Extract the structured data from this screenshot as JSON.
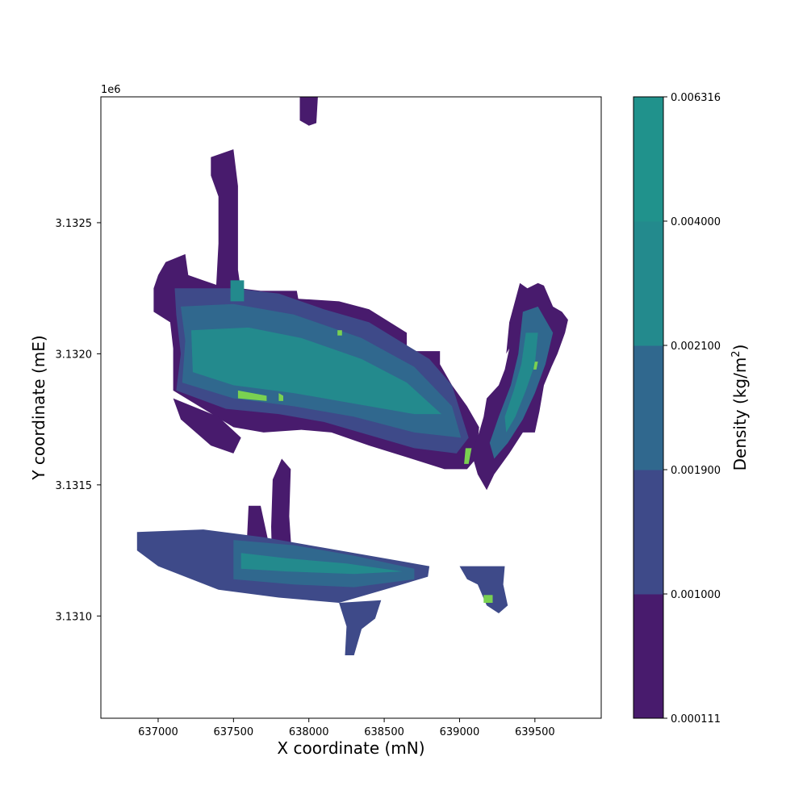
{
  "chart_data": {
    "type": "heatmap",
    "subtype": "filled-contour",
    "title": "",
    "xlabel": "X coordinate (mN)",
    "ylabel": "Y coordinate (mE)",
    "x_ticks": [
      637000,
      637500,
      638000,
      638500,
      639000,
      639500
    ],
    "x_tick_labels": [
      "637000",
      "637500",
      "638000",
      "638500",
      "639000",
      "639500"
    ],
    "y_ticks": [
      3131000,
      3131500,
      3132000,
      3132500
    ],
    "y_tick_labels": [
      "3.1310",
      "3.1315",
      "3.1320",
      "3.1325"
    ],
    "y_offset_label": "1e6",
    "xlim": [
      636620,
      639940
    ],
    "ylim": [
      3130610,
      3132980
    ],
    "grid": false,
    "colorbar": {
      "label_text": "Density (kg/m",
      "label_sup": "2",
      "label_close": ")",
      "levels": [
        0.000111,
        0.001,
        0.0019,
        0.0021,
        0.004,
        0.006316
      ],
      "level_labels": [
        "0.000111",
        "0.001000",
        "0.001900",
        "0.002100",
        "0.004000",
        "0.006316"
      ],
      "colors": [
        "#481b6d",
        "#3e4a89",
        "#30688e",
        "#238a8d",
        "#20928c",
        "#7ad151"
      ]
    },
    "regions": [
      {
        "name": "north-spur",
        "level": 0,
        "poly": [
          [
            637940,
            3132980
          ],
          [
            638060,
            3132980
          ],
          [
            638050,
            3132880
          ],
          [
            638000,
            3132870
          ],
          [
            637940,
            3132890
          ]
        ]
      },
      {
        "name": "curved-band",
        "level": 0,
        "poly": [
          [
            637350,
            3132750
          ],
          [
            637500,
            3132780
          ],
          [
            637530,
            3132640
          ],
          [
            637530,
            3132320
          ],
          [
            637560,
            3132200
          ],
          [
            637380,
            3132200
          ],
          [
            637400,
            3132420
          ],
          [
            637400,
            3132600
          ],
          [
            637350,
            3132680
          ]
        ]
      },
      {
        "name": "main-block-envelope",
        "level": 0,
        "poly": [
          [
            637050,
            3132350
          ],
          [
            637180,
            3132380
          ],
          [
            637200,
            3132300
          ],
          [
            637400,
            3132260
          ],
          [
            637680,
            3132240
          ],
          [
            637920,
            3132240
          ],
          [
            637930,
            3132210
          ],
          [
            638200,
            3132200
          ],
          [
            638400,
            3132170
          ],
          [
            638650,
            3132080
          ],
          [
            638650,
            3132010
          ],
          [
            638870,
            3132010
          ],
          [
            638870,
            3131960
          ],
          [
            638950,
            3131880
          ],
          [
            639050,
            3131800
          ],
          [
            639130,
            3131720
          ],
          [
            639110,
            3131600
          ],
          [
            639050,
            3131560
          ],
          [
            638900,
            3131560
          ],
          [
            638680,
            3131600
          ],
          [
            638400,
            3131650
          ],
          [
            638150,
            3131700
          ],
          [
            637950,
            3131710
          ],
          [
            637700,
            3131700
          ],
          [
            637500,
            3131720
          ],
          [
            637300,
            3131790
          ],
          [
            637100,
            3131860
          ],
          [
            637100,
            3132020
          ],
          [
            637080,
            3132120
          ],
          [
            636970,
            3132160
          ],
          [
            636970,
            3132250
          ],
          [
            637000,
            3132300
          ]
        ]
      },
      {
        "name": "lower-tail",
        "level": 0,
        "poly": [
          [
            637100,
            3131830
          ],
          [
            637400,
            3131760
          ],
          [
            637550,
            3131680
          ],
          [
            637500,
            3131620
          ],
          [
            637350,
            3131650
          ],
          [
            637150,
            3131750
          ]
        ]
      },
      {
        "name": "middle-fin",
        "level": 0,
        "poly": [
          [
            637820,
            3131600
          ],
          [
            637880,
            3131560
          ],
          [
            637870,
            3131380
          ],
          [
            637900,
            3131120
          ],
          [
            637760,
            3131120
          ],
          [
            637750,
            3131340
          ],
          [
            637760,
            3131520
          ]
        ]
      },
      {
        "name": "lower-wedge",
        "level": 0,
        "poly": [
          [
            637600,
            3131420
          ],
          [
            637680,
            3131420
          ],
          [
            637740,
            3131260
          ],
          [
            637780,
            3131180
          ],
          [
            637580,
            3131180
          ]
        ]
      },
      {
        "name": "east-belt-envelope",
        "level": 0,
        "poly": [
          [
            639400,
            3132270
          ],
          [
            639450,
            3132250
          ],
          [
            639520,
            3132270
          ],
          [
            639560,
            3132260
          ],
          [
            639620,
            3132180
          ],
          [
            639680,
            3132160
          ],
          [
            639720,
            3132130
          ],
          [
            639700,
            3132080
          ],
          [
            639650,
            3132000
          ],
          [
            639610,
            3131950
          ],
          [
            639560,
            3131880
          ],
          [
            639530,
            3131780
          ],
          [
            639500,
            3131700
          ],
          [
            639420,
            3131700
          ],
          [
            639330,
            3131620
          ],
          [
            639230,
            3131540
          ],
          [
            639180,
            3131480
          ],
          [
            639120,
            3131540
          ],
          [
            639080,
            3131620
          ],
          [
            639130,
            3131700
          ],
          [
            639160,
            3131760
          ],
          [
            639180,
            3131830
          ],
          [
            639260,
            3131880
          ],
          [
            639300,
            3131940
          ],
          [
            639330,
            3132020
          ],
          [
            639310,
            3132000
          ],
          [
            639330,
            3132120
          ]
        ]
      },
      {
        "name": "main-block-mid",
        "level": 1,
        "poly": [
          [
            637110,
            3132250
          ],
          [
            637500,
            3132250
          ],
          [
            637800,
            3132230
          ],
          [
            638100,
            3132170
          ],
          [
            638400,
            3132120
          ],
          [
            638600,
            3132050
          ],
          [
            638800,
            3131980
          ],
          [
            638950,
            3131880
          ],
          [
            639060,
            3131680
          ],
          [
            638980,
            3131620
          ],
          [
            638700,
            3131640
          ],
          [
            638400,
            3131690
          ],
          [
            638100,
            3131740
          ],
          [
            637800,
            3131770
          ],
          [
            637450,
            3131790
          ],
          [
            637120,
            3131860
          ],
          [
            637150,
            3132000
          ],
          [
            637120,
            3132150
          ]
        ]
      },
      {
        "name": "main-block-upper",
        "level": 2,
        "poly": [
          [
            637150,
            3132180
          ],
          [
            637500,
            3132190
          ],
          [
            637900,
            3132150
          ],
          [
            638350,
            3132060
          ],
          [
            638700,
            3131950
          ],
          [
            638950,
            3131800
          ],
          [
            639010,
            3131680
          ],
          [
            638700,
            3131700
          ],
          [
            638300,
            3131760
          ],
          [
            637900,
            3131800
          ],
          [
            637500,
            3131830
          ],
          [
            637160,
            3131890
          ],
          [
            637180,
            3132050
          ]
        ]
      },
      {
        "name": "main-block-core",
        "level": 3,
        "poly": [
          [
            637220,
            3132090
          ],
          [
            637600,
            3132100
          ],
          [
            637950,
            3132060
          ],
          [
            638350,
            3131980
          ],
          [
            638650,
            3131890
          ],
          [
            638880,
            3131770
          ],
          [
            638700,
            3131770
          ],
          [
            638300,
            3131810
          ],
          [
            637900,
            3131850
          ],
          [
            637500,
            3131880
          ],
          [
            637230,
            3131930
          ]
        ]
      },
      {
        "name": "main-north-tab",
        "level": 3,
        "poly": [
          [
            637480,
            3132280
          ],
          [
            637570,
            3132280
          ],
          [
            637570,
            3132200
          ],
          [
            637480,
            3132200
          ]
        ]
      },
      {
        "name": "south-belt-low",
        "level": 1,
        "poly": [
          [
            636860,
            3131320
          ],
          [
            637300,
            3131330
          ],
          [
            637700,
            3131300
          ],
          [
            638100,
            3131260
          ],
          [
            638500,
            3131220
          ],
          [
            638800,
            3131190
          ],
          [
            638790,
            3131150
          ],
          [
            638500,
            3131100
          ],
          [
            638200,
            3131050
          ],
          [
            637800,
            3131070
          ],
          [
            637400,
            3131100
          ],
          [
            637000,
            3131190
          ],
          [
            636860,
            3131250
          ]
        ]
      },
      {
        "name": "south-belt-mid",
        "level": 2,
        "poly": [
          [
            637500,
            3131290
          ],
          [
            637900,
            3131270
          ],
          [
            638300,
            3131230
          ],
          [
            638700,
            3131180
          ],
          [
            638700,
            3131140
          ],
          [
            638300,
            3131110
          ],
          [
            637900,
            3131120
          ],
          [
            637500,
            3131140
          ]
        ]
      },
      {
        "name": "south-belt-core",
        "level": 3,
        "poly": [
          [
            637550,
            3131240
          ],
          [
            637850,
            3131220
          ],
          [
            638250,
            3131200
          ],
          [
            638620,
            3131170
          ],
          [
            638300,
            3131160
          ],
          [
            637850,
            3131170
          ],
          [
            637550,
            3131180
          ]
        ]
      },
      {
        "name": "south-drips",
        "level": 1,
        "poly": [
          [
            638200,
            3131050
          ],
          [
            638480,
            3131060
          ],
          [
            638440,
            3130990
          ],
          [
            638350,
            3130950
          ],
          [
            638300,
            3130850
          ],
          [
            638240,
            3130850
          ],
          [
            638250,
            3130960
          ]
        ]
      },
      {
        "name": "southeast-cluster",
        "level": 1,
        "poly": [
          [
            639000,
            3131190
          ],
          [
            639300,
            3131190
          ],
          [
            639290,
            3131120
          ],
          [
            639320,
            3131040
          ],
          [
            639260,
            3131010
          ],
          [
            639180,
            3131040
          ],
          [
            639120,
            3131120
          ],
          [
            639050,
            3131140
          ]
        ]
      },
      {
        "name": "east-belt-mid",
        "level": 2,
        "poly": [
          [
            639420,
            3132160
          ],
          [
            639520,
            3132180
          ],
          [
            639620,
            3132080
          ],
          [
            639570,
            3131960
          ],
          [
            639500,
            3131850
          ],
          [
            639420,
            3131750
          ],
          [
            639320,
            3131660
          ],
          [
            639230,
            3131600
          ],
          [
            639200,
            3131660
          ],
          [
            639260,
            3131760
          ],
          [
            639340,
            3131880
          ],
          [
            639390,
            3132000
          ]
        ]
      },
      {
        "name": "east-belt-core",
        "level": 3,
        "poly": [
          [
            639440,
            3132080
          ],
          [
            639520,
            3132080
          ],
          [
            639500,
            3131960
          ],
          [
            639440,
            3131860
          ],
          [
            639370,
            3131760
          ],
          [
            639310,
            3131700
          ],
          [
            639300,
            3131760
          ],
          [
            639360,
            3131860
          ],
          [
            639410,
            3131960
          ]
        ]
      },
      {
        "name": "hotspot-upper-left",
        "level": 5,
        "poly": [
          [
            637530,
            3131860
          ],
          [
            637720,
            3131840
          ],
          [
            637720,
            3131820
          ],
          [
            637530,
            3131830
          ]
        ]
      },
      {
        "name": "hotspot-main-center",
        "level": 5,
        "poly": [
          [
            637800,
            3131850
          ],
          [
            637830,
            3131840
          ],
          [
            637830,
            3131820
          ],
          [
            637800,
            3131820
          ]
        ]
      },
      {
        "name": "hotspot-north-streak",
        "level": 5,
        "poly": [
          [
            638190,
            3132090
          ],
          [
            638220,
            3132090
          ],
          [
            638220,
            3132070
          ],
          [
            638190,
            3132070
          ]
        ]
      },
      {
        "name": "hotspot-east-edge",
        "level": 5,
        "poly": [
          [
            639040,
            3131640
          ],
          [
            639080,
            3131640
          ],
          [
            639060,
            3131580
          ],
          [
            639030,
            3131580
          ]
        ]
      },
      {
        "name": "hotspot-east-belt",
        "level": 5,
        "poly": [
          [
            639500,
            3131970
          ],
          [
            639520,
            3131970
          ],
          [
            639510,
            3131940
          ],
          [
            639490,
            3131940
          ]
        ]
      },
      {
        "name": "hotspot-southeast",
        "level": 5,
        "poly": [
          [
            639160,
            3131080
          ],
          [
            639220,
            3131080
          ],
          [
            639220,
            3131050
          ],
          [
            639160,
            3131050
          ]
        ]
      }
    ]
  }
}
